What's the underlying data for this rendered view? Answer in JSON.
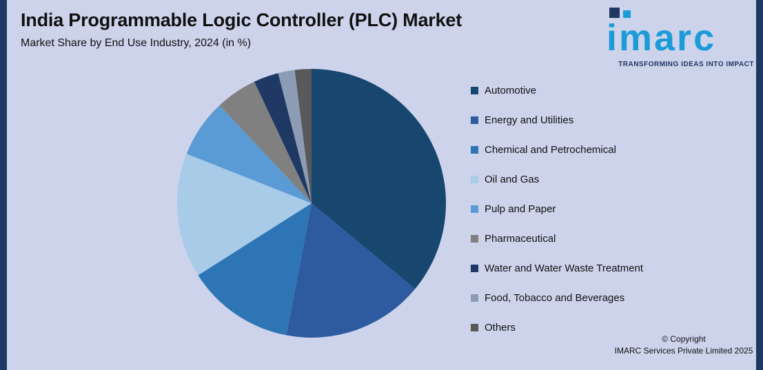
{
  "page": {
    "title": "India Programmable Logic Controller (PLC) Market",
    "subtitle": "Market Share by End Use Industry, 2024 (in %)",
    "background_color": "#ccd3eb",
    "edge_bar_color": "#1e3764"
  },
  "logo": {
    "text": "imarc",
    "tagline": "TRANSFORMING IDEAS INTO IMPACT",
    "brand_color": "#1b9cd8",
    "accent_color": "#1e3764"
  },
  "copyright": {
    "line1": "© Copyright",
    "line2": "IMARC Services Private Limited 2025"
  },
  "chart_data": {
    "type": "pie",
    "title": "India Programmable Logic Controller (PLC) Market",
    "subtitle": "Market Share by End Use Industry, 2024 (in %)",
    "unit": "%",
    "legend_position": "right",
    "start_angle_deg": 0,
    "direction": "clockwise",
    "slices": [
      {
        "label": "Automotive",
        "value": 36,
        "color": "#17466e"
      },
      {
        "label": "Energy and Utilities",
        "value": 17,
        "color": "#2e5ba0"
      },
      {
        "label": "Chemical and Petrochemical",
        "value": 13,
        "color": "#2e75b6"
      },
      {
        "label": "Oil and Gas",
        "value": 15,
        "color": "#a8cbe8"
      },
      {
        "label": "Pulp and Paper",
        "value": 7,
        "color": "#5b9bd5"
      },
      {
        "label": "Pharmaceutical",
        "value": 5,
        "color": "#808080"
      },
      {
        "label": "Water and Water Waste Treatment",
        "value": 3,
        "color": "#1f3864"
      },
      {
        "label": "Food, Tobacco and Beverages",
        "value": 2,
        "color": "#8c9cb4"
      },
      {
        "label": "Others",
        "value": 2,
        "color": "#595959"
      }
    ]
  }
}
